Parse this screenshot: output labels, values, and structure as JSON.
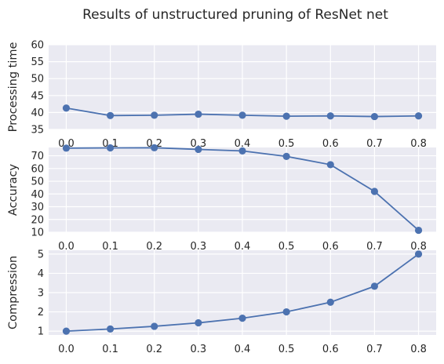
{
  "title": "Results of unstructured pruning of ResNet net",
  "colors": {
    "background": "#eaeaf2",
    "grid": "#ffffff",
    "series": "#4c72b0"
  },
  "chart_data": [
    {
      "type": "line",
      "ylabel": "Processing time",
      "xlabel": "",
      "x": [
        0.0,
        0.1,
        0.2,
        0.3,
        0.4,
        0.5,
        0.6,
        0.7,
        0.8
      ],
      "x_tick_labels": [
        "0.0",
        "0.1",
        "0.2",
        "0.3",
        "0.4",
        "0.5",
        "0.6",
        "0.7",
        "0.8"
      ],
      "values": [
        41.3,
        39.1,
        39.2,
        39.5,
        39.2,
        38.9,
        39.0,
        38.8,
        39.0
      ],
      "ylim": [
        35,
        60
      ],
      "y_ticks": [
        35,
        40,
        45,
        50,
        55,
        60
      ],
      "grid": true,
      "markers": true
    },
    {
      "type": "line",
      "ylabel": "Accuracy",
      "xlabel": "",
      "x": [
        0.0,
        0.1,
        0.2,
        0.3,
        0.4,
        0.5,
        0.6,
        0.7,
        0.8
      ],
      "x_tick_labels": [
        "0.0",
        "0.1",
        "0.2",
        "0.3",
        "0.4",
        "0.5",
        "0.6",
        "0.7",
        "0.8"
      ],
      "values": [
        76.0,
        76.2,
        76.3,
        75.0,
        73.8,
        69.5,
        63.0,
        42.0,
        11.5
      ],
      "ylim": [
        10,
        76.5
      ],
      "y_ticks": [
        10,
        20,
        30,
        40,
        50,
        60,
        70
      ],
      "grid": true,
      "markers": true
    },
    {
      "type": "line",
      "ylabel": "Compression",
      "xlabel": "",
      "x": [
        0.0,
        0.1,
        0.2,
        0.3,
        0.4,
        0.5,
        0.6,
        0.7,
        0.8
      ],
      "x_tick_labels": [
        "0.0",
        "0.1",
        "0.2",
        "0.3",
        "0.4",
        "0.5",
        "0.6",
        "0.7",
        "0.8"
      ],
      "values": [
        1.0,
        1.11,
        1.25,
        1.43,
        1.67,
        2.0,
        2.5,
        3.33,
        5.0
      ],
      "ylim": [
        0.8,
        5.2
      ],
      "y_ticks": [
        1,
        2,
        3,
        4,
        5
      ],
      "grid": true,
      "markers": true
    }
  ]
}
